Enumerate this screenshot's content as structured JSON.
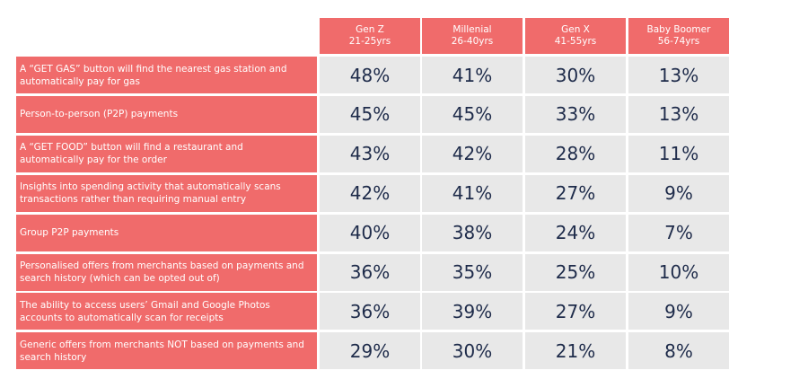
{
  "colors": {
    "accent": "#f06b6b",
    "value_bg": "#e8e8e8",
    "value_text": "#1e2b4a",
    "header_text": "#ffffff"
  },
  "chart_data": {
    "type": "table",
    "columns": [
      {
        "name": "Gen Z",
        "sub": "21-25yrs"
      },
      {
        "name": "Millenial",
        "sub": "26-40yrs"
      },
      {
        "name": "Gen X",
        "sub": "41-55yrs"
      },
      {
        "name": "Baby Boomer",
        "sub": "56-74yrs"
      }
    ],
    "rows": [
      {
        "label": "A “GET GAS” button will find the nearest gas station and automatically pay for gas",
        "values": [
          "48%",
          "41%",
          "30%",
          "13%"
        ]
      },
      {
        "label": "Person-to-person (P2P) payments",
        "values": [
          "45%",
          "45%",
          "33%",
          "13%"
        ]
      },
      {
        "label": "A “GET FOOD” button will find a restaurant and automatically pay for the order",
        "values": [
          "43%",
          "42%",
          "28%",
          "11%"
        ]
      },
      {
        "label": "Insights into spending activity that automatically scans transactions rather than requiring manual entry",
        "values": [
          "42%",
          "41%",
          "27%",
          "9%"
        ]
      },
      {
        "label": "Group P2P payments",
        "values": [
          "40%",
          "38%",
          "24%",
          "7%"
        ]
      },
      {
        "label": "Personalised offers from merchants based on payments and search history (which can be opted out of)",
        "values": [
          "36%",
          "35%",
          "25%",
          "10%"
        ]
      },
      {
        "label": "The ability to access users’ Gmail and Google Photos accounts to automatically scan for receipts",
        "values": [
          "36%",
          "39%",
          "27%",
          "9%"
        ]
      },
      {
        "label": "Generic offers from merchants NOT based on payments and search history",
        "values": [
          "29%",
          "30%",
          "21%",
          "8%"
        ]
      }
    ]
  }
}
